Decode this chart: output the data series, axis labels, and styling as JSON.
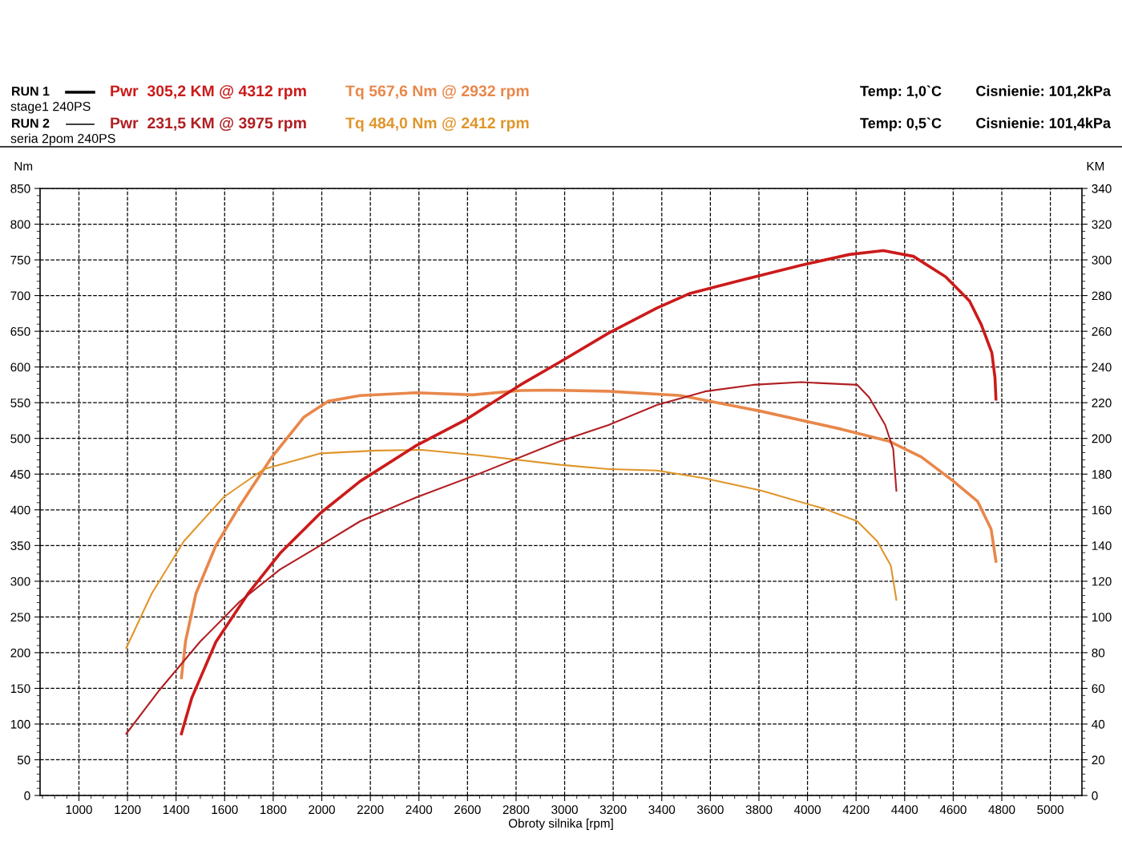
{
  "chart_data": {
    "type": "line",
    "xlabel": "Obroty silnika [rpm]",
    "ylabel": "Nm",
    "y2label": "KM",
    "xlim": [
      840,
      5130
    ],
    "xticks": [
      1000,
      1200,
      1400,
      1600,
      1800,
      2000,
      2200,
      2400,
      2600,
      2800,
      3000,
      3200,
      3400,
      3600,
      3800,
      4000,
      4200,
      4400,
      4600,
      4800,
      5000
    ],
    "ylim": [
      0,
      850
    ],
    "yticks": [
      0,
      50,
      100,
      150,
      200,
      250,
      300,
      350,
      400,
      450,
      500,
      550,
      600,
      650,
      700,
      750,
      800,
      850
    ],
    "y2lim": [
      0,
      340
    ],
    "y2ticks": [
      0,
      20,
      40,
      60,
      80,
      100,
      120,
      140,
      160,
      180,
      200,
      220,
      240,
      260,
      280,
      300,
      320,
      340
    ],
    "grid": true,
    "line_style": "dashed",
    "marker": "none",
    "legend": false,
    "annotations": [
      "RUN 1",
      "Pwr  305,2 KM @ 4312 rpm",
      "Tq 567,6 Nm @ 2932 rpm",
      "stage1 240PS",
      "Temp: 1,0`C",
      "Cisnienie: 101,2kPa",
      "RUN 2",
      "Pwr  231,5 KM @ 3975 rpm",
      "Tq 484,0 Nm @ 2412 rpm",
      "seria 2pom 240PS",
      "Temp: 0,5`C",
      "Cisnienie: 101,4kPa"
    ],
    "series": [
      {
        "color": "#cc1a1a",
        "axis": "y2",
        "line_style": "solid",
        "x": [
          1422,
          1465,
          1564,
          1696,
          1828,
          1993,
          2158,
          2389,
          2587,
          2818,
          2983,
          3181,
          3380,
          3512,
          3710,
          3974,
          4172,
          4312,
          4436,
          4568,
          4667,
          4716,
          4759,
          4772,
          4776
        ],
        "values": [
          34.6,
          54.8,
          86,
          113,
          135.6,
          158,
          176,
          196,
          210,
          230,
          243,
          259,
          273,
          281,
          288,
          297,
          303,
          305.2,
          302,
          290.6,
          277,
          263.6,
          248,
          234,
          222
        ]
      },
      {
        "color": "#e8874a",
        "line_style": "solid",
        "x": [
          1422,
          1439,
          1482,
          1564,
          1663,
          1795,
          1927,
          2026,
          2158,
          2389,
          2620,
          2818,
          2932,
          3181,
          3478,
          3809,
          4139,
          4337,
          4469,
          4601,
          4700,
          4756,
          4776
        ],
        "values": [
          165,
          216,
          283,
          350,
          406,
          474,
          530,
          552,
          560,
          564,
          561,
          567,
          567.6,
          566,
          560,
          538,
          513,
          496,
          474,
          440,
          412,
          373,
          328
        ]
      },
      {
        "color": "#b01e22",
        "axis": "y2",
        "line_style": "solid",
        "x": [
          1195,
          1333,
          1498,
          1663,
          1828,
          1993,
          2158,
          2389,
          2653,
          2983,
          3181,
          3380,
          3578,
          3776,
          3975,
          4205,
          4254,
          4320,
          4353,
          4366
        ],
        "values": [
          34.6,
          59.3,
          86,
          108.7,
          126.6,
          140,
          153.6,
          167,
          180.5,
          198.5,
          207.5,
          218.7,
          226.3,
          230,
          231.5,
          230,
          223,
          207.5,
          194,
          170.7
        ]
      },
      {
        "color": "#e0952a",
        "line_style": "solid",
        "x": [
          1195,
          1300,
          1432,
          1597,
          1762,
          1993,
          2224,
          2412,
          2653,
          2983,
          3181,
          3380,
          3578,
          3809,
          4073,
          4205,
          4287,
          4343,
          4366
        ],
        "values": [
          206.6,
          283,
          356,
          418,
          457,
          479,
          483,
          484.0,
          476,
          463,
          457,
          455,
          444,
          427,
          401,
          384,
          356,
          322,
          274
        ]
      }
    ]
  }
}
